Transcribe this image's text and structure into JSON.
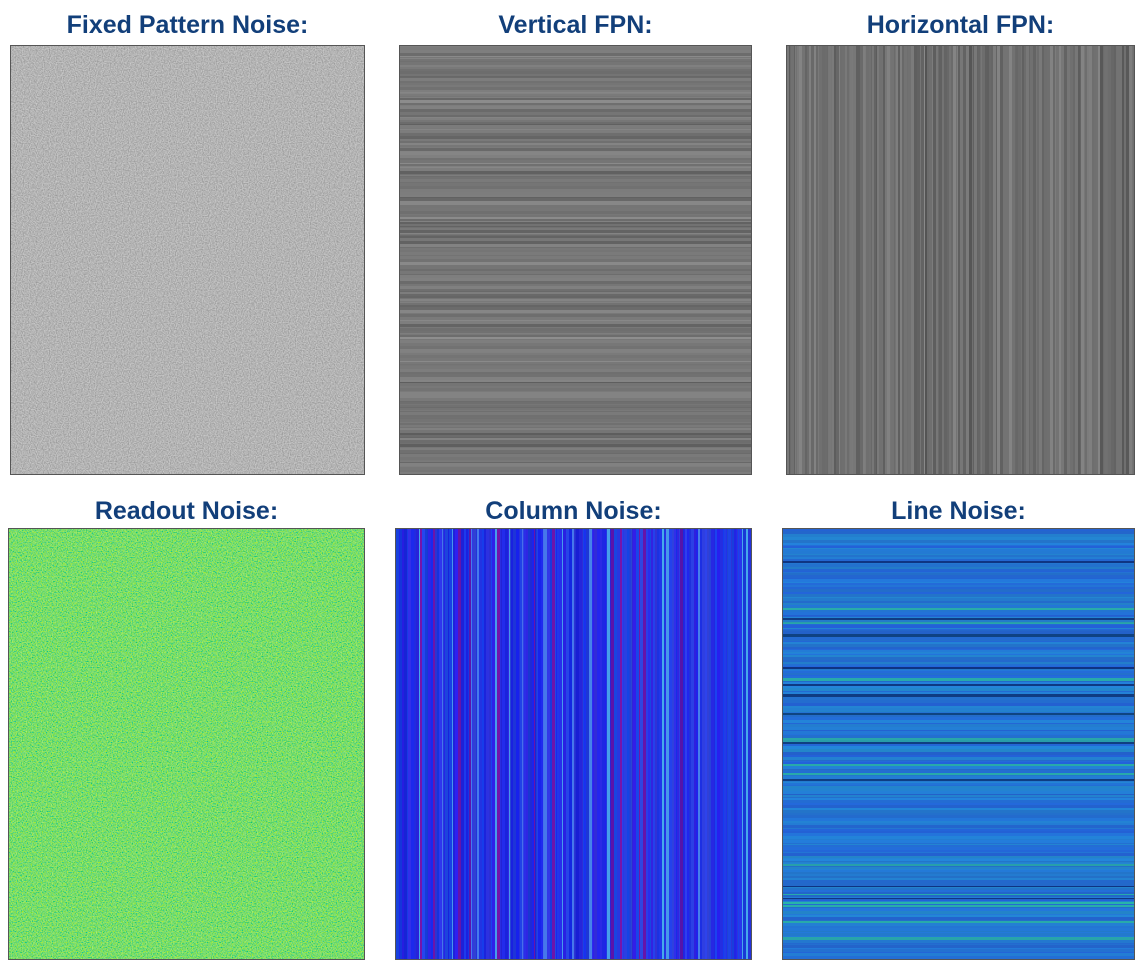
{
  "panels": [
    {
      "title": "Fixed Pattern Noise:"
    },
    {
      "title": "Vertical FPN:"
    },
    {
      "title": "Horizontal FPN:"
    },
    {
      "title": "Readout Noise:"
    },
    {
      "title": "Column Noise:"
    },
    {
      "title": "Line Noise:"
    }
  ]
}
